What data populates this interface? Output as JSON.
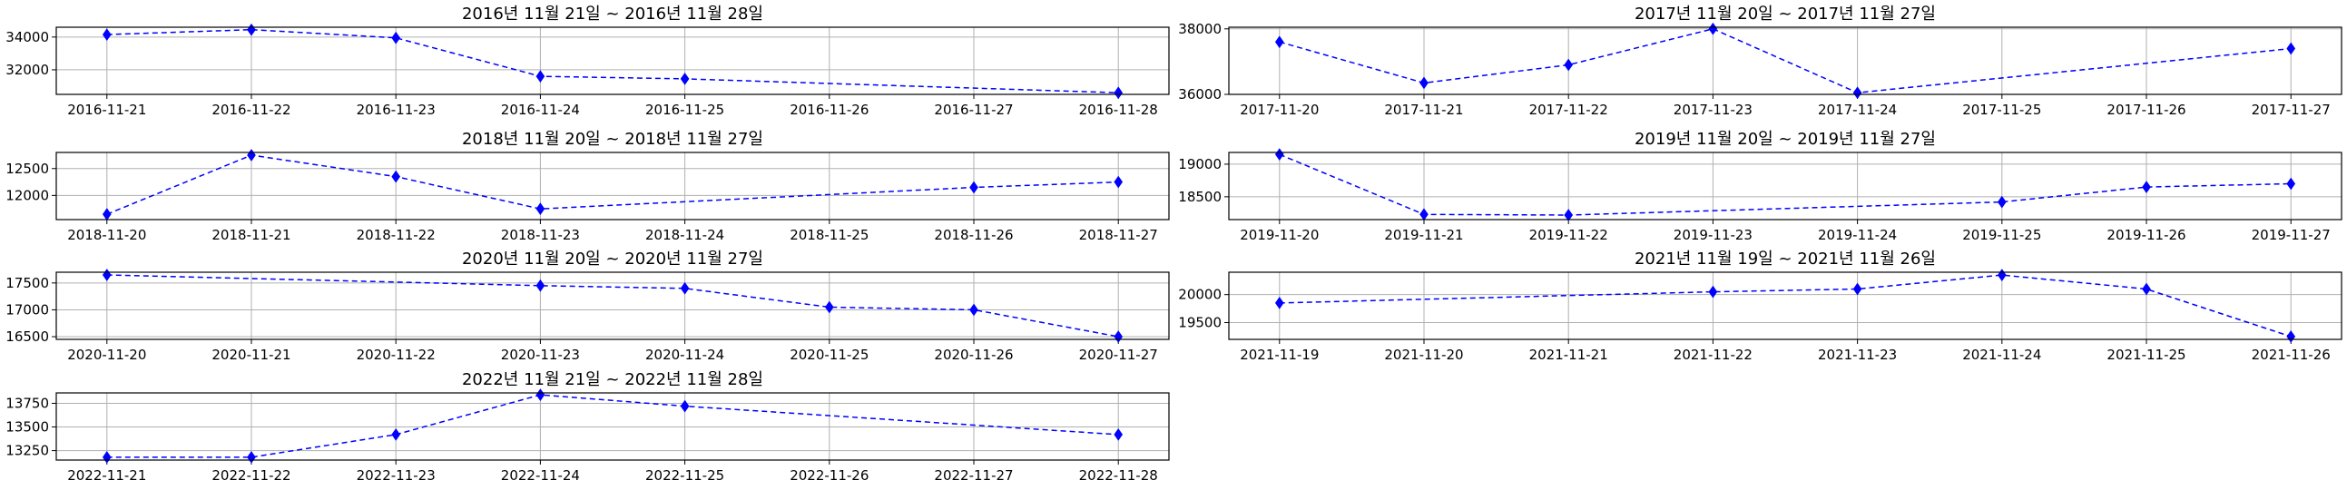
{
  "figure": {
    "background": "#ffffff",
    "series_color": "#0000ff"
  },
  "chart_data": [
    {
      "type": "line",
      "title": "2016년 11월 21일 ~ 2016년 11월 28일",
      "categories": [
        "2016-11-21",
        "2016-11-22",
        "2016-11-23",
        "2016-11-24",
        "2016-11-25",
        "2016-11-26",
        "2016-11-27",
        "2016-11-28"
      ],
      "x": [
        "2016-11-21",
        "2016-11-22",
        "2016-11-23",
        "2016-11-24",
        "2016-11-25",
        "2016-11-28"
      ],
      "y": [
        34150,
        34450,
        33950,
        31600,
        31450,
        30600
      ],
      "ylim": [
        30500,
        34600
      ],
      "yticks": [
        32000,
        34000
      ],
      "grid": true,
      "marker": "diamond",
      "line_style": "dashed"
    },
    {
      "type": "line",
      "title": "2017년 11월 20일 ~ 2017년 11월 27일",
      "categories": [
        "2017-11-20",
        "2017-11-21",
        "2017-11-22",
        "2017-11-23",
        "2017-11-24",
        "2017-11-25",
        "2017-11-26",
        "2017-11-27"
      ],
      "x": [
        "2017-11-20",
        "2017-11-21",
        "2017-11-22",
        "2017-11-23",
        "2017-11-24",
        "2017-11-27"
      ],
      "y": [
        37600,
        36350,
        36900,
        38000,
        36050,
        37400
      ],
      "ylim": [
        36000,
        38050
      ],
      "yticks": [
        36000,
        38000
      ],
      "grid": true,
      "marker": "diamond",
      "line_style": "dashed"
    },
    {
      "type": "line",
      "title": "2018년 11월 20일 ~ 2018년 11월 27일",
      "categories": [
        "2018-11-20",
        "2018-11-21",
        "2018-11-22",
        "2018-11-23",
        "2018-11-24",
        "2018-11-25",
        "2018-11-26",
        "2018-11-27"
      ],
      "x": [
        "2018-11-20",
        "2018-11-21",
        "2018-11-22",
        "2018-11-23",
        "2018-11-26",
        "2018-11-27"
      ],
      "y": [
        11650,
        12750,
        12350,
        11750,
        12150,
        12250
      ],
      "ylim": [
        11550,
        12800
      ],
      "yticks": [
        12000,
        12500
      ],
      "grid": true,
      "marker": "diamond",
      "line_style": "dashed"
    },
    {
      "type": "line",
      "title": "2019년 11월 20일 ~ 2019년 11월 27일",
      "categories": [
        "2019-11-20",
        "2019-11-21",
        "2019-11-22",
        "2019-11-23",
        "2019-11-24",
        "2019-11-25",
        "2019-11-26",
        "2019-11-27"
      ],
      "x": [
        "2019-11-20",
        "2019-11-21",
        "2019-11-22",
        "2019-11-25",
        "2019-11-26",
        "2019-11-27"
      ],
      "y": [
        19150,
        18230,
        18220,
        18420,
        18650,
        18700
      ],
      "ylim": [
        18150,
        19180
      ],
      "yticks": [
        18500,
        19000
      ],
      "grid": true,
      "marker": "diamond",
      "line_style": "dashed"
    },
    {
      "type": "line",
      "title": "2020년 11월 20일 ~ 2020년 11월 27일",
      "categories": [
        "2020-11-20",
        "2020-11-21",
        "2020-11-22",
        "2020-11-23",
        "2020-11-24",
        "2020-11-25",
        "2020-11-26",
        "2020-11-27"
      ],
      "x": [
        "2020-11-20",
        "2020-11-23",
        "2020-11-24",
        "2020-11-25",
        "2020-11-26",
        "2020-11-27"
      ],
      "y": [
        17650,
        17450,
        17400,
        17050,
        17000,
        16500
      ],
      "ylim": [
        16450,
        17700
      ],
      "yticks": [
        16500,
        17000,
        17500
      ],
      "grid": true,
      "marker": "diamond",
      "line_style": "dashed"
    },
    {
      "type": "line",
      "title": "2021년 11월 19일 ~ 2021년 11월 26일",
      "categories": [
        "2021-11-19",
        "2021-11-20",
        "2021-11-21",
        "2021-11-22",
        "2021-11-23",
        "2021-11-24",
        "2021-11-25",
        "2021-11-26"
      ],
      "x": [
        "2021-11-19",
        "2021-11-22",
        "2021-11-23",
        "2021-11-24",
        "2021-11-25",
        "2021-11-26"
      ],
      "y": [
        19850,
        20050,
        20100,
        20350,
        20100,
        19250
      ],
      "ylim": [
        19200,
        20400
      ],
      "yticks": [
        19500,
        20000
      ],
      "grid": true,
      "marker": "diamond",
      "line_style": "dashed"
    },
    {
      "type": "line",
      "title": "2022년 11월 21일 ~ 2022년 11월 28일",
      "categories": [
        "2022-11-21",
        "2022-11-22",
        "2022-11-23",
        "2022-11-24",
        "2022-11-25",
        "2022-11-26",
        "2022-11-27",
        "2022-11-28"
      ],
      "x": [
        "2022-11-21",
        "2022-11-22",
        "2022-11-23",
        "2022-11-24",
        "2022-11-25",
        "2022-11-28"
      ],
      "y": [
        13180,
        13180,
        13420,
        13840,
        13720,
        13420
      ],
      "ylim": [
        13150,
        13860
      ],
      "yticks": [
        13250,
        13500,
        13750
      ],
      "grid": true,
      "marker": "diamond",
      "line_style": "dashed"
    }
  ]
}
